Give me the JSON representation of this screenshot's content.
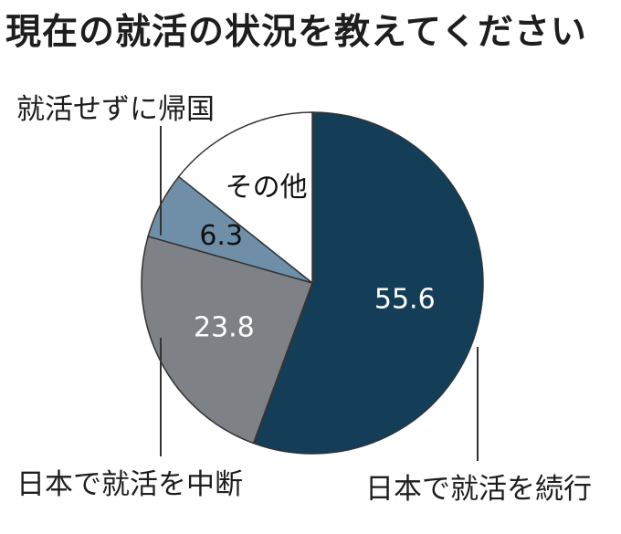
{
  "title": "現在の就活の状況を教えてください",
  "chart_data": {
    "type": "pie",
    "slices": [
      {
        "name": "日本で就活を続行",
        "value": 55.6,
        "value_label": "55.6",
        "color": "#143e57",
        "label_color": "#ffffff"
      },
      {
        "name": "日本で就活を中断",
        "value": 23.8,
        "value_label": "23.8",
        "color": "#7e8186",
        "label_color": "#ffffff"
      },
      {
        "name": "就活せずに帰国",
        "value": 6.3,
        "value_label": "6.3",
        "color": "#6f8fa8",
        "label_color": "#111111"
      },
      {
        "name": "その他",
        "value": 14.3,
        "value_label": "その他",
        "color": "#ffffff",
        "label_color": "#111111"
      }
    ],
    "start": "12 o'clock",
    "direction": "clockwise"
  }
}
